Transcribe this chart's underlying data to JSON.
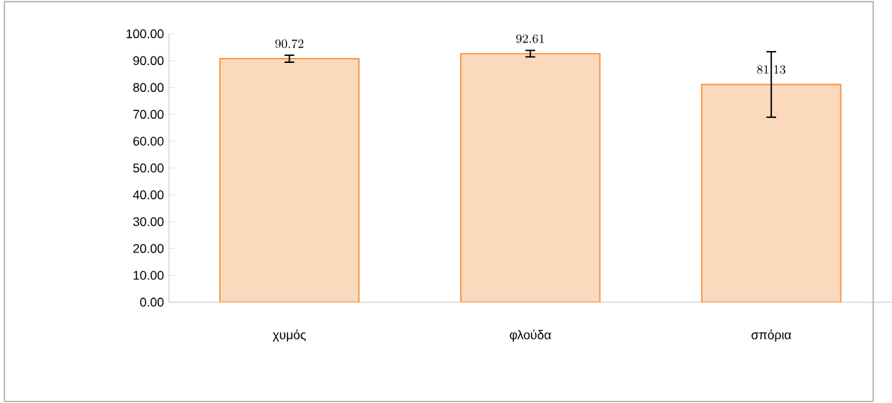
{
  "chart_data": {
    "type": "bar",
    "categories": [
      "χυμός",
      "φλούδα",
      "σπόρια"
    ],
    "values": [
      90.72,
      92.61,
      81.13
    ],
    "errors": [
      1.3,
      1.2,
      12.2
    ],
    "color": "#fbd9bc",
    "data_labels": true,
    "ylim": [
      0,
      100
    ],
    "yticks": [
      {
        "value": 0,
        "label": "0.00"
      },
      {
        "value": 10,
        "label": "10.00"
      },
      {
        "value": 20,
        "label": "20.00"
      },
      {
        "value": 30,
        "label": "30.00"
      },
      {
        "value": 40,
        "label": "40.00"
      },
      {
        "value": 50,
        "label": "50.00"
      },
      {
        "value": 60,
        "label": "60.00"
      },
      {
        "value": 70,
        "label": "70.00"
      },
      {
        "value": 80,
        "label": "80.00"
      },
      {
        "value": 90,
        "label": "90.00"
      },
      {
        "value": 100,
        "label": "100.00"
      }
    ],
    "grid": false
  }
}
